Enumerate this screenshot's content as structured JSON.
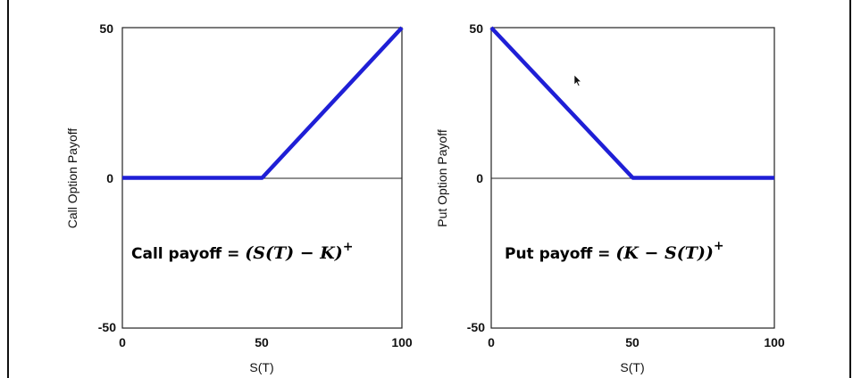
{
  "chart_data": [
    {
      "type": "line",
      "xlabel": "S(T)",
      "ylabel": "Call Option Payoff",
      "xlim": [
        0,
        100
      ],
      "ylim": [
        -50,
        50
      ],
      "xticks": [
        "0",
        "50",
        "100"
      ],
      "yticks": [
        "50",
        "0",
        "-50"
      ],
      "series": [
        {
          "color": "#1f1fd6",
          "x": [
            0,
            50,
            100
          ],
          "y": [
            0,
            0,
            50
          ]
        }
      ],
      "annotation": {
        "label": "Call payoff = ",
        "formula": "(S(T) − K)",
        "superscript": "+"
      }
    },
    {
      "type": "line",
      "xlabel": "S(T)",
      "ylabel": "Put Option Payoff",
      "xlim": [
        0,
        100
      ],
      "ylim": [
        -50,
        50
      ],
      "xticks": [
        "0",
        "50",
        "100"
      ],
      "yticks": [
        "50",
        "0",
        "-50"
      ],
      "series": [
        {
          "color": "#1f1fd6",
          "x": [
            0,
            50,
            100
          ],
          "y": [
            50,
            0,
            0
          ]
        }
      ],
      "annotation": {
        "label": "Put payoff = ",
        "formula": "(K − S(T))",
        "superscript": "+"
      }
    }
  ]
}
